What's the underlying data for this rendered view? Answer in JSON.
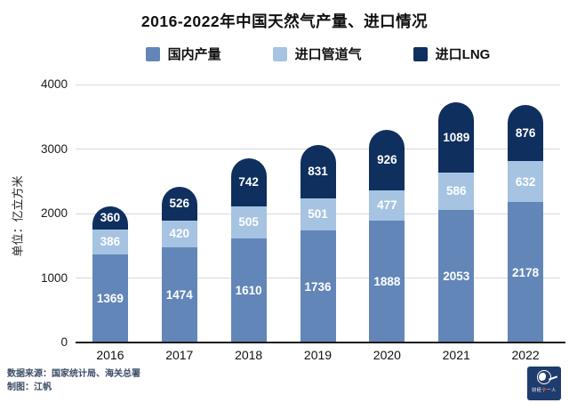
{
  "title": "2016-2022年中国天然气产量、进口情况",
  "ylabel": "单位：亿立方米",
  "footer": {
    "source": "数据来源：国家统计局、海关总署",
    "author": "制图：江帆",
    "logo_text": "财经十一人"
  },
  "colors": {
    "domestic": "#6286b8",
    "pipeline": "#a6c3e2",
    "lng": "#0f2f5e",
    "axis": "#1a1a1a",
    "grid": "#d9d9d9",
    "logo_bg": "#1e3c6d"
  },
  "chart_data": {
    "type": "bar",
    "stacked": true,
    "title": "2016-2022年中国天然气产量、进口情况",
    "ylabel": "单位：亿立方米",
    "categories": [
      "2016",
      "2017",
      "2018",
      "2019",
      "2020",
      "2021",
      "2022"
    ],
    "series": [
      {
        "name": "国内产量",
        "color": "#6286b8",
        "values": [
          1369,
          1474,
          1610,
          1736,
          1888,
          2053,
          2178
        ]
      },
      {
        "name": "进口管道气",
        "color": "#a6c3e2",
        "values": [
          386,
          420,
          505,
          501,
          477,
          586,
          632
        ]
      },
      {
        "name": "进口LNG",
        "color": "#0f2f5e",
        "values": [
          360,
          526,
          742,
          831,
          926,
          1089,
          876
        ]
      }
    ],
    "yticks": [
      0,
      1000,
      2000,
      3000,
      4000
    ],
    "ylim": [
      0,
      4000
    ],
    "grid": true,
    "legend_position": "top"
  }
}
